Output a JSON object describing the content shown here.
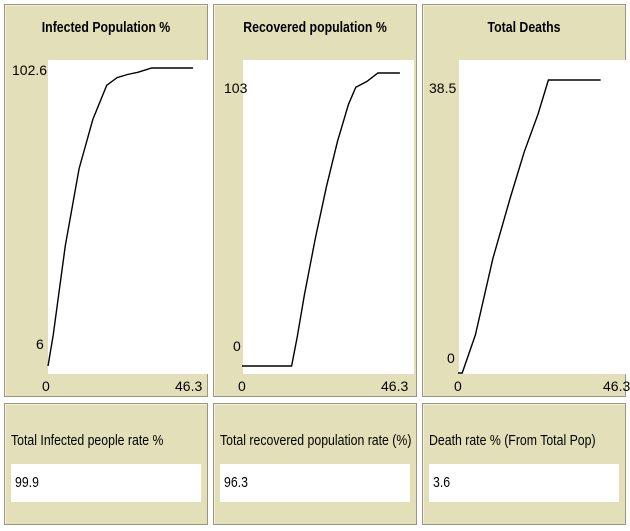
{
  "plots": [
    {
      "title": "Infected Population %",
      "y_max_label": "102.6",
      "y_min_label": "6",
      "x_min_label": "0",
      "x_max_label": "46.3"
    },
    {
      "title": "Recovered population %",
      "y_max_label": "103",
      "y_min_label": "0",
      "x_min_label": "0",
      "x_max_label": "46.3"
    },
    {
      "title": "Total Deaths",
      "y_max_label": "38.5",
      "y_min_label": "0",
      "x_min_label": "0",
      "x_max_label": "46.3"
    }
  ],
  "monitors": [
    {
      "label": "Total Infected people rate %",
      "value": "99.9"
    },
    {
      "label": "Total recovered population rate (%)",
      "value": "96.3"
    },
    {
      "label": "Death rate % (From Total Pop)",
      "value": "3.6"
    }
  ],
  "chart_data": [
    {
      "type": "line",
      "title": "Infected Population %",
      "xlim": [
        0,
        46.3
      ],
      "ylim": [
        6,
        102.6
      ],
      "series": [
        {
          "x": [
            0,
            1.5,
            5,
            9,
            13,
            17,
            20,
            23,
            26,
            30,
            34,
            38,
            42
          ],
          "y": [
            6,
            16,
            45,
            70,
            86,
            97,
            99.5,
            100.5,
            101.2,
            102.6,
            102.6,
            102.6,
            102.6
          ]
        }
      ]
    },
    {
      "type": "line",
      "title": "Recovered population %",
      "xlim": [
        0,
        46.3
      ],
      "ylim": [
        0,
        103
      ],
      "series": [
        {
          "x": [
            0,
            5,
            10,
            13.5,
            15,
            17,
            20,
            23,
            26,
            29,
            31,
            34,
            37,
            40,
            43
          ],
          "y": [
            0,
            0,
            0,
            0,
            10,
            25,
            45,
            63,
            79,
            92,
            98,
            100,
            103,
            103,
            103
          ]
        }
      ]
    },
    {
      "type": "line",
      "title": "Total Deaths",
      "xlim": [
        0,
        46.3
      ],
      "ylim": [
        0,
        38.5
      ],
      "series": [
        {
          "x": [
            0,
            1.2,
            5,
            10,
            15,
            19,
            23,
            26,
            34,
            41
          ],
          "y": [
            0,
            0,
            5,
            15,
            23,
            29,
            34,
            38.5,
            38.5,
            38.5
          ]
        }
      ]
    }
  ]
}
